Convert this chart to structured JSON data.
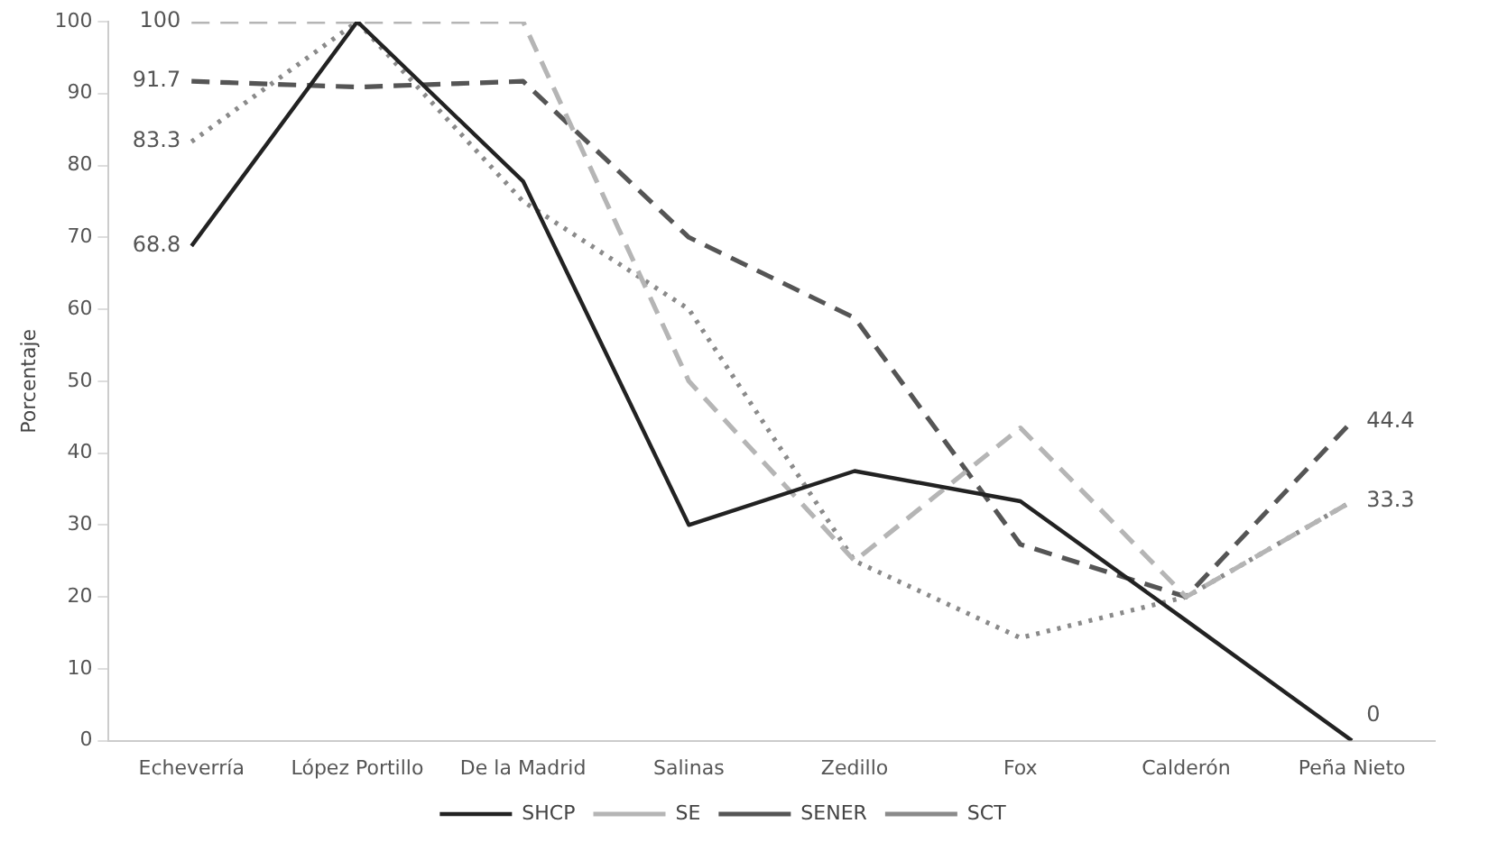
{
  "chart_data": {
    "type": "line",
    "ylabel": "Porcentaje",
    "categories": [
      "Echeverría",
      "López Portillo",
      "De la Madrid",
      "Salinas",
      "Zedillo",
      "Fox",
      "Calderón",
      "Peña Nieto"
    ],
    "ylim": [
      0,
      100
    ],
    "yticks": [
      0,
      10,
      20,
      30,
      40,
      50,
      60,
      70,
      80,
      90,
      100
    ],
    "grid": false,
    "legend": "bottom",
    "marker": "none",
    "series": [
      {
        "name": "SHCP",
        "color": "#222222",
        "line_style": "solid",
        "values": [
          68.8,
          100,
          77.8,
          30,
          37.5,
          33.3,
          16.7,
          0
        ],
        "value_labels": [
          "68.8",
          null,
          null,
          null,
          null,
          null,
          null,
          "0"
        ]
      },
      {
        "name": "SE",
        "color": "#b5b5b5",
        "line_style": "dashed",
        "values": [
          100,
          100,
          100,
          50,
          25,
          43.5,
          20,
          33.3
        ],
        "value_labels": [
          "100",
          null,
          null,
          null,
          null,
          null,
          null,
          "33.3"
        ]
      },
      {
        "name": "SENER",
        "color": "#555555",
        "line_style": "dashed",
        "values": [
          91.7,
          90.9,
          91.7,
          70,
          58.8,
          27.3,
          20,
          44.4
        ],
        "value_labels": [
          "91.7",
          null,
          null,
          null,
          null,
          null,
          null,
          "44.4"
        ]
      },
      {
        "name": "SCT",
        "color": "#8a8a8a",
        "line_style": "dotted",
        "values": [
          83.3,
          100,
          75,
          60,
          25,
          14.3,
          20,
          33.3
        ],
        "value_labels": [
          "83.3",
          null,
          null,
          null,
          null,
          null,
          null,
          null
        ]
      }
    ]
  }
}
